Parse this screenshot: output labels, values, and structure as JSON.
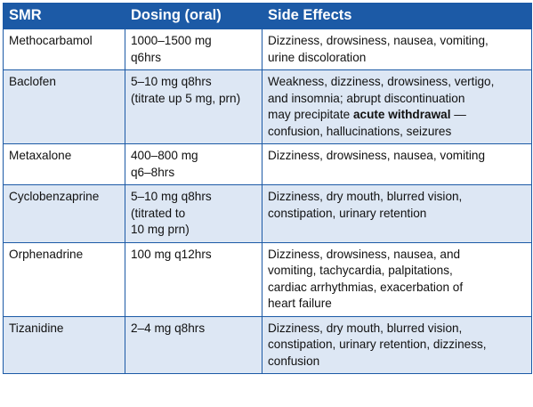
{
  "headers": {
    "smr": "SMR",
    "dosing": "Dosing (oral)",
    "side_effects": "Side Effects"
  },
  "rows": [
    {
      "smr": "Methocarbamol",
      "dosing": [
        "1000–1500 mg",
        "q6hrs"
      ],
      "effects": [
        "Dizziness, drowsiness, nausea, vomiting,",
        "urine discoloration"
      ]
    },
    {
      "smr": "Baclofen",
      "dosing": [
        "5–10 mg q8hrs",
        "(titrate up 5 mg, prn)"
      ],
      "effects": [
        "Weakness, dizziness, drowsiness, vertigo,",
        "and insomnia; abrupt discontinuation",
        "may precipitate "
      ],
      "effects_bold": "acute withdrawal",
      "effects_after_bold": " —",
      "effects_tail": "confusion, hallucinations, seizures"
    },
    {
      "smr": "Metaxalone",
      "dosing": [
        "400–800 mg",
        "q6–8hrs"
      ],
      "effects": [
        "Dizziness, drowsiness, nausea, vomiting"
      ]
    },
    {
      "smr": "Cyclobenzaprine",
      "dosing": [
        "5–10 mg q8hrs",
        "(titrated to",
        "10 mg prn)"
      ],
      "effects": [
        "Dizziness, dry mouth, blurred vision,",
        "constipation, urinary retention"
      ]
    },
    {
      "smr": "Orphenadrine",
      "dosing": [
        "100 mg q12hrs"
      ],
      "effects": [
        "Dizziness, drowsiness, nausea, and",
        "vomiting, tachycardia, palpitations,",
        "cardiac arrhythmias, exacerbation of",
        "heart failure"
      ]
    },
    {
      "smr": "Tizanidine",
      "dosing": [
        "2–4 mg q8hrs"
      ],
      "effects": [
        "Dizziness, dry mouth, blurred vision,",
        "constipation, urinary retention, dizziness,",
        "confusion"
      ]
    }
  ],
  "colors": {
    "header_bg": "#1c5aa6",
    "stripe_bg": "#dde7f4",
    "border": "#1c5aa6"
  }
}
